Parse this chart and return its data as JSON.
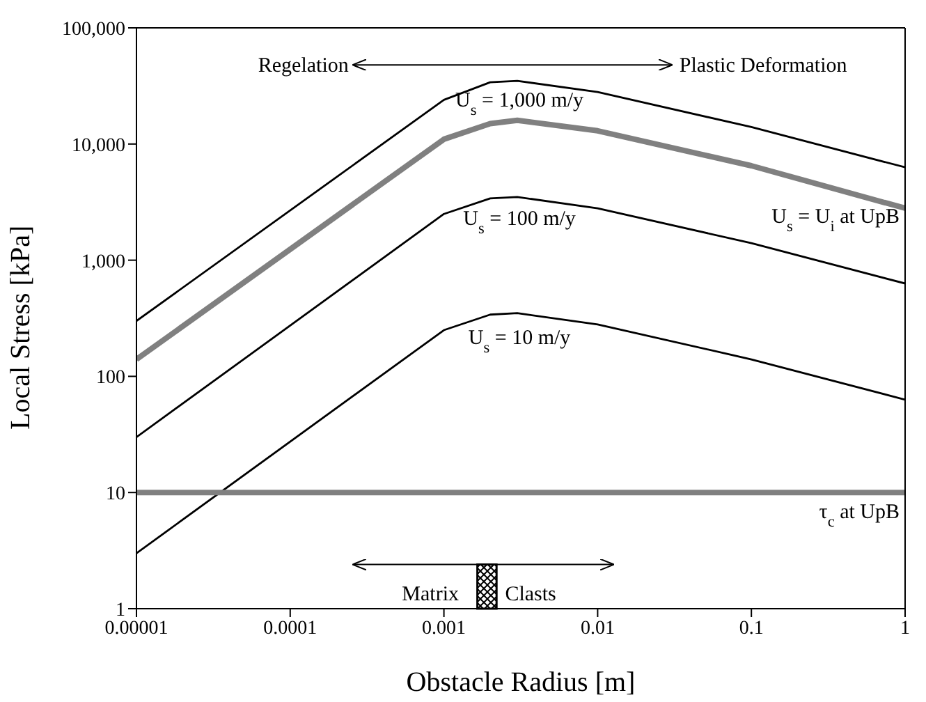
{
  "chart_data": {
    "type": "line",
    "xlabel": "Obstacle Radius [m]",
    "ylabel": "Local Stress [kPa]",
    "log": "xy",
    "marker": "none",
    "line_style": "solid",
    "xlim": [
      1e-05,
      1
    ],
    "xticks": [
      {
        "value": 1e-05,
        "label": "0.00001"
      },
      0.0001,
      0.001,
      0.01,
      0.1,
      1
    ],
    "ylim": [
      1,
      100000
    ],
    "yticks": [
      1,
      10,
      100,
      {
        "value": 1000,
        "label": "1,000"
      },
      {
        "value": 10000,
        "label": "10,000"
      },
      {
        "value": 100000,
        "label": "100,000"
      }
    ],
    "series": [
      {
        "name": "U$_{s}$ = 1,000 m/y",
        "color": "#000000",
        "x": [
          1e-05,
          0.001,
          0.002,
          0.003,
          0.01,
          0.1,
          1
        ],
        "values": [
          300,
          24000,
          34000,
          35000,
          28000,
          14000,
          6300
        ]
      },
      {
        "name": "U$_{s}$ = U$_{i}$ at UpB",
        "color": "#808080",
        "x": [
          1e-05,
          0.001,
          0.002,
          0.003,
          0.01,
          0.1,
          1
        ],
        "values": [
          140,
          11000,
          15000,
          16000,
          13000,
          6500,
          2800
        ]
      },
      {
        "name": "U$_{s}$ = 100 m/y",
        "color": "#000000",
        "x": [
          1e-05,
          0.001,
          0.002,
          0.003,
          0.01,
          0.1,
          1
        ],
        "values": [
          30,
          2500,
          3400,
          3500,
          2800,
          1400,
          630
        ]
      },
      {
        "name": "U$_{s}$ = 10 m/y",
        "color": "#000000",
        "x": [
          1e-05,
          0.001,
          0.002,
          0.003,
          0.01,
          0.1,
          1
        ],
        "values": [
          3,
          250,
          340,
          350,
          280,
          140,
          63
        ]
      },
      {
        "name": "τ$_{c}$ at UpB",
        "color": "#808080",
        "x": [
          1e-05,
          1
        ],
        "values": [
          10,
          10
        ]
      }
    ],
    "annotations": [
      "Regelation",
      "Plastic Deformation",
      "Matrix",
      "Clasts"
    ]
  }
}
